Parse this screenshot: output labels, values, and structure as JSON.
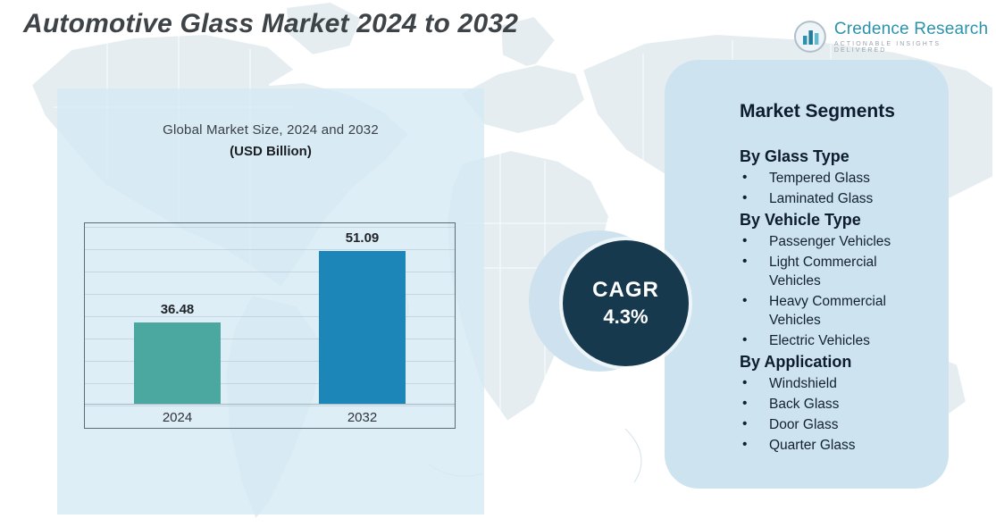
{
  "title": "Automotive Glass Market 2024 to 2032",
  "logo": {
    "name": "Credence Research",
    "tagline": "Actionable Insights Delivered"
  },
  "chart_data": {
    "type": "bar",
    "title": "Global Market Size, 2024 and 2032",
    "subtitle": "(USD Billion)",
    "categories": [
      "2024",
      "2032"
    ],
    "values": [
      36.48,
      51.09
    ],
    "labels": [
      "36.48",
      "51.09"
    ],
    "colors": [
      "#4aa8a1",
      "#1d86b8"
    ],
    "legend": "none",
    "grid": "horizontal"
  },
  "cagr": {
    "label": "CAGR",
    "value": "4.3%",
    "circle_color": "#16394e"
  },
  "segments": {
    "title": "Market Segments",
    "groups": [
      {
        "heading": "By Glass Type",
        "items": [
          "Tempered Glass",
          "Laminated Glass"
        ]
      },
      {
        "heading": "By Vehicle Type",
        "items": [
          "Passenger Vehicles",
          "Light Commercial Vehicles",
          "Heavy Commercial Vehicles",
          "Electric Vehicles"
        ]
      },
      {
        "heading": "By Application",
        "items": [
          "Windshield",
          "Back Glass",
          "Door Glass",
          "Quarter Glass"
        ]
      }
    ],
    "panel_color": "#cde3ef"
  }
}
